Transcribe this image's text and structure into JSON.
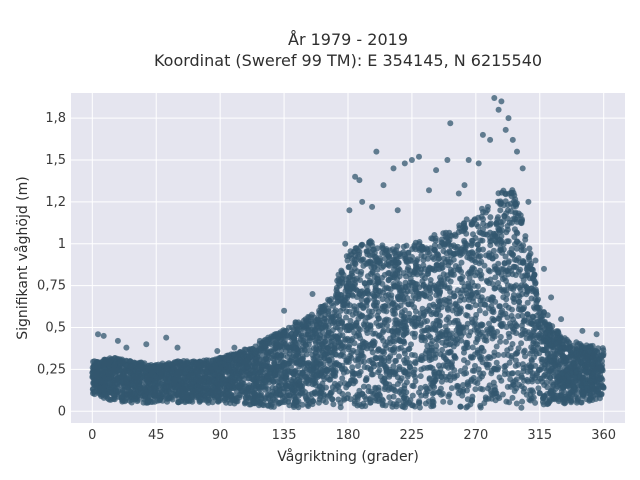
{
  "chart_data": {
    "type": "scatter",
    "title_line1": "År 1979 - 2019",
    "title_line2": "Koordinat (Sweref 99 TM): E 354145, N 6215540",
    "xlabel": "Vågriktning (grader)",
    "ylabel": "Signifikant våghöjd (m)",
    "xlim": [
      -15,
      375
    ],
    "ylim": [
      -0.07,
      1.9
    ],
    "x_ticks": [
      0,
      45,
      90,
      135,
      180,
      225,
      270,
      315,
      360
    ],
    "x_tick_labels": [
      "0",
      "45",
      "90",
      "135",
      "180",
      "225",
      "270",
      "315",
      "360"
    ],
    "y_ticks": [
      0,
      0.25,
      0.5,
      0.75,
      1,
      1.25,
      1.5,
      1.75
    ],
    "y_tick_labels": [
      "0",
      "0,25",
      "0,5",
      "0,75",
      "1",
      "1,2",
      "1,5",
      "1,8"
    ],
    "grid": true,
    "colors": {
      "background": "#e5e5ef",
      "grid": "#ffffff",
      "marker": "#33576f"
    },
    "envelope": {
      "x": [
        0,
        15,
        30,
        45,
        60,
        75,
        90,
        105,
        120,
        135,
        150,
        165,
        180,
        195,
        210,
        225,
        240,
        255,
        270,
        285,
        295,
        305,
        315,
        330,
        345,
        360
      ],
      "upper": [
        0.3,
        0.32,
        0.3,
        0.28,
        0.3,
        0.3,
        0.32,
        0.36,
        0.42,
        0.5,
        0.56,
        0.65,
        0.95,
        1.02,
        0.98,
        1.0,
        1.05,
        1.1,
        1.18,
        1.3,
        1.35,
        1.1,
        0.65,
        0.45,
        0.4,
        0.38
      ],
      "lower": [
        0.1,
        0.06,
        0.05,
        0.05,
        0.05,
        0.05,
        0.05,
        0.04,
        0.03,
        0.02,
        0.02,
        0.02,
        0.02,
        0.02,
        0.02,
        0.02,
        0.02,
        0.02,
        0.02,
        0.02,
        0.02,
        0.02,
        0.03,
        0.04,
        0.05,
        0.08
      ]
    },
    "outliers": [
      {
        "x": 4,
        "y": 0.46
      },
      {
        "x": 8,
        "y": 0.45
      },
      {
        "x": 18,
        "y": 0.42
      },
      {
        "x": 24,
        "y": 0.38
      },
      {
        "x": 38,
        "y": 0.4
      },
      {
        "x": 52,
        "y": 0.44
      },
      {
        "x": 60,
        "y": 0.38
      },
      {
        "x": 88,
        "y": 0.36
      },
      {
        "x": 100,
        "y": 0.38
      },
      {
        "x": 118,
        "y": 0.42
      },
      {
        "x": 135,
        "y": 0.6
      },
      {
        "x": 155,
        "y": 0.7
      },
      {
        "x": 178,
        "y": 1.0
      },
      {
        "x": 181,
        "y": 1.2
      },
      {
        "x": 185,
        "y": 1.4
      },
      {
        "x": 188,
        "y": 1.38
      },
      {
        "x": 190,
        "y": 1.25
      },
      {
        "x": 197,
        "y": 1.22
      },
      {
        "x": 200,
        "y": 1.55
      },
      {
        "x": 205,
        "y": 1.35
      },
      {
        "x": 212,
        "y": 1.45
      },
      {
        "x": 215,
        "y": 1.2
      },
      {
        "x": 220,
        "y": 1.48
      },
      {
        "x": 225,
        "y": 1.5
      },
      {
        "x": 230,
        "y": 1.52
      },
      {
        "x": 237,
        "y": 1.32
      },
      {
        "x": 242,
        "y": 1.44
      },
      {
        "x": 250,
        "y": 1.5
      },
      {
        "x": 252,
        "y": 1.72
      },
      {
        "x": 258,
        "y": 1.3
      },
      {
        "x": 262,
        "y": 1.35
      },
      {
        "x": 265,
        "y": 1.5
      },
      {
        "x": 272,
        "y": 1.48
      },
      {
        "x": 275,
        "y": 1.65
      },
      {
        "x": 280,
        "y": 1.62
      },
      {
        "x": 283,
        "y": 1.87
      },
      {
        "x": 286,
        "y": 1.8
      },
      {
        "x": 288,
        "y": 1.85
      },
      {
        "x": 291,
        "y": 1.68
      },
      {
        "x": 293,
        "y": 1.75
      },
      {
        "x": 296,
        "y": 1.62
      },
      {
        "x": 299,
        "y": 1.55
      },
      {
        "x": 303,
        "y": 1.45
      },
      {
        "x": 307,
        "y": 1.25
      },
      {
        "x": 312,
        "y": 0.9
      },
      {
        "x": 318,
        "y": 0.85
      },
      {
        "x": 323,
        "y": 0.68
      },
      {
        "x": 330,
        "y": 0.55
      },
      {
        "x": 345,
        "y": 0.48
      },
      {
        "x": 355,
        "y": 0.46
      }
    ],
    "marker_opacity": 0.75
  }
}
